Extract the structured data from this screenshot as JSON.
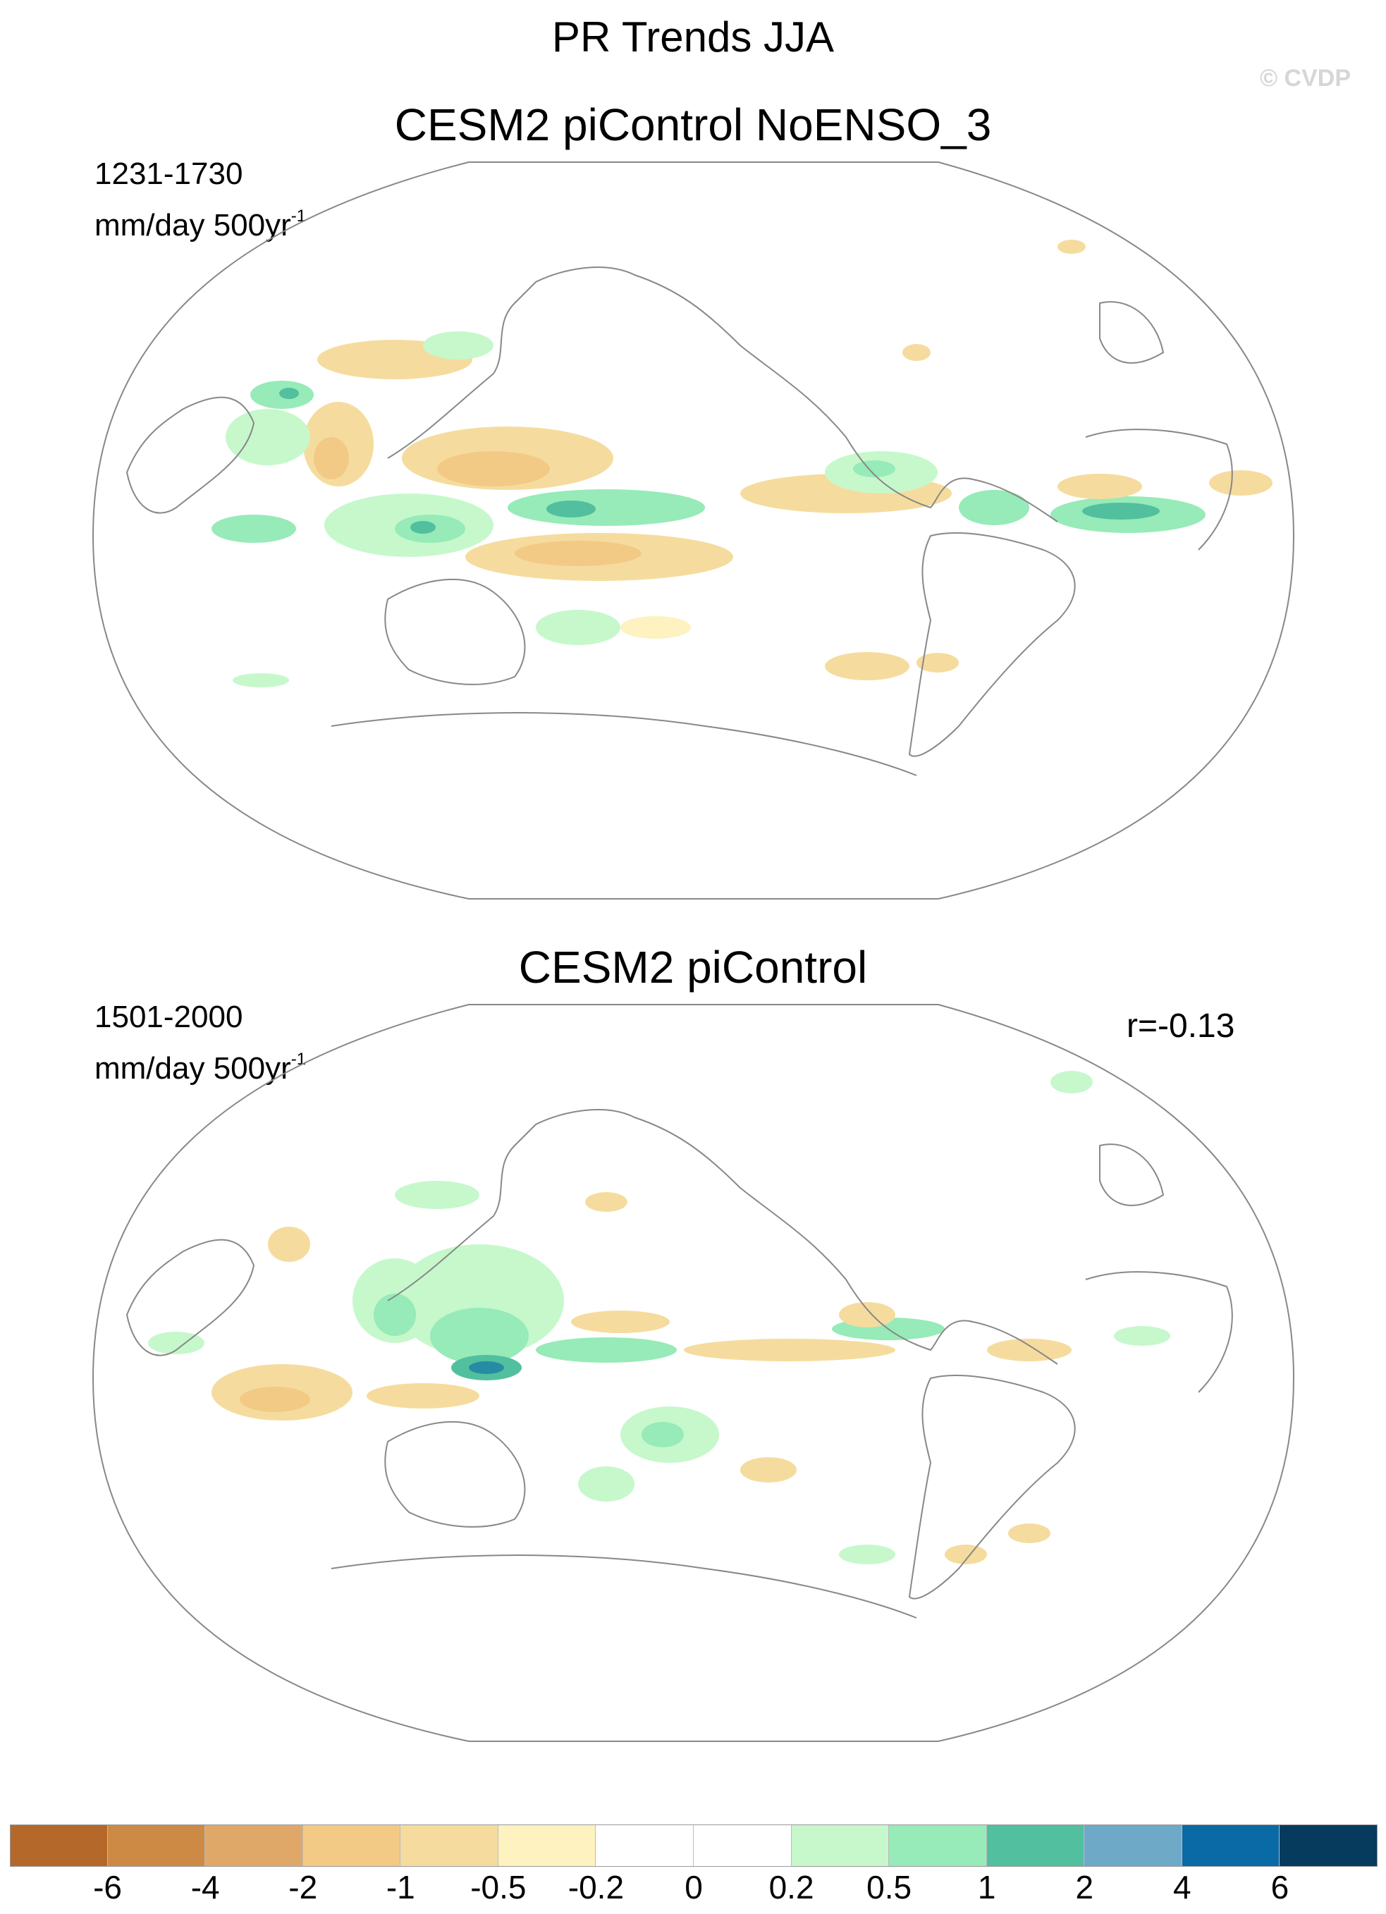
{
  "main_title": "PR Trends JJA",
  "watermark": "© CVDP",
  "panels": [
    {
      "title": "CESM2 piControl NoENSO_3",
      "years": "1231-1730",
      "units_base": "mm/day 500yr",
      "units_exp": "-1",
      "corr": ""
    },
    {
      "title": "CESM2 piControl",
      "years": "1501-2000",
      "units_base": "mm/day 500yr",
      "units_exp": "-1",
      "corr": "r=-0.13"
    }
  ],
  "colorbar": {
    "colors": [
      "#b4692b",
      "#cd8a45",
      "#e0a868",
      "#f2ca86",
      "#f5dc9e",
      "#fdf2c0",
      "#ffffff",
      "#ffffff",
      "#c6f8cc",
      "#96ebb8",
      "#52bf9e",
      "#6fa9c8",
      "#0a6aa6",
      "#063b5e"
    ],
    "labels": [
      "-6",
      "-4",
      "-2",
      "-1",
      "-0.5",
      "-0.2",
      "0",
      "0.2",
      "0.5",
      "1",
      "2",
      "4",
      "6"
    ]
  }
}
